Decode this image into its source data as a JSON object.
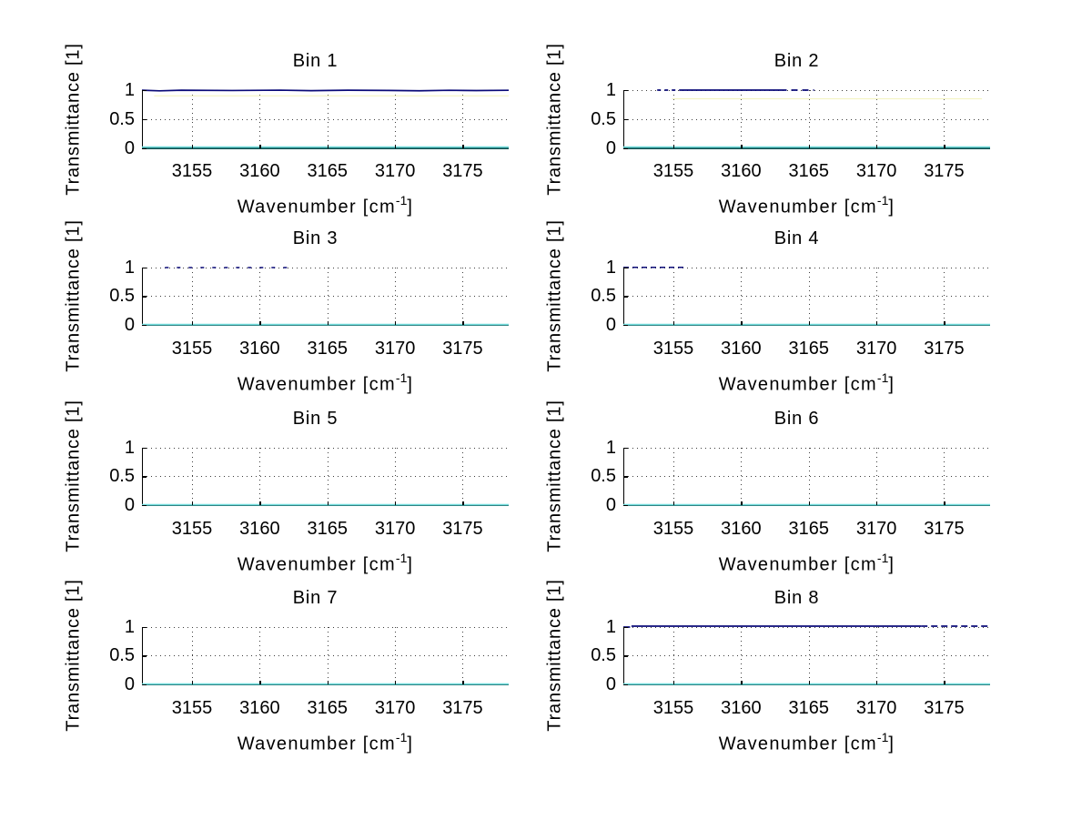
{
  "figure": {
    "background": "#ffffff"
  },
  "chart_data": [
    {
      "type": "line",
      "title": "Bin 1",
      "xlabel": "Wavenumber [cm^{-1}]",
      "ylabel": "Transmittance [1]",
      "xlim": [
        3151.3,
        3178.4
      ],
      "ylim": [
        0,
        1
      ],
      "xticks": [
        3155,
        3160,
        3165,
        3170,
        3175
      ],
      "yticks": [
        0,
        0.5,
        1
      ],
      "grid": "dotted",
      "series": [
        {
          "name": "transmittance-line",
          "color": "#0a0a78",
          "width": 1.7,
          "points": [
            [
              3151.3,
              0.998
            ],
            [
              3152.6,
              0.987
            ],
            [
              3154.2,
              0.998
            ],
            [
              3158,
              0.993
            ],
            [
              3161.5,
              0.999
            ],
            [
              3163.8,
              0.99
            ],
            [
              3166.5,
              0.998
            ],
            [
              3169.5,
              0.994
            ],
            [
              3171.8,
              0.988
            ],
            [
              3174,
              0.997
            ],
            [
              3176,
              0.992
            ],
            [
              3178.4,
              0.997
            ]
          ]
        },
        {
          "name": "reference-line-faint",
          "color": "#f4f4c2",
          "width": 1.1,
          "parts": [
            {
              "x": [
                3152.2,
                3178.4
              ],
              "y": 0.9,
              "dash": "solid"
            }
          ]
        },
        {
          "name": "baseline-line",
          "color": "#72dcdc",
          "width": 1.6,
          "parts": [
            {
              "x": [
                3151.3,
                3178.4
              ],
              "y": 0.015,
              "dash": "solid"
            }
          ]
        }
      ]
    },
    {
      "type": "line",
      "title": "Bin 2",
      "xlabel": "Wavenumber [cm^{-1}]",
      "ylabel": "Transmittance [1]",
      "xlim": [
        3151.3,
        3178.4
      ],
      "ylim": [
        0,
        1
      ],
      "xticks": [
        3155,
        3160,
        3165,
        3170,
        3175
      ],
      "yticks": [
        0,
        0.5,
        1
      ],
      "grid": "dotted",
      "series": [
        {
          "name": "transmittance-line",
          "color": "#0a0a78",
          "width": 1.7,
          "parts": [
            {
              "x": [
                3153.8,
                3155.5
              ],
              "y": 1.0,
              "dash": [
                4,
                4
              ]
            },
            {
              "x": [
                3155.5,
                3162.9
              ],
              "y": 1.0,
              "dash": "solid"
            },
            {
              "x": [
                3162.9,
                3165.4
              ],
              "y": 1.0,
              "dash": [
                7,
                5
              ]
            }
          ]
        },
        {
          "name": "reference-line-faint",
          "color": "#f4f4c2",
          "width": 1.1,
          "parts": [
            {
              "x": [
                3154.9,
                3177.8
              ],
              "y": 0.85,
              "dash": "solid"
            }
          ]
        },
        {
          "name": "baseline-line",
          "color": "#72dcdc",
          "width": 1.6,
          "parts": [
            {
              "x": [
                3151.3,
                3178.4
              ],
              "y": 0.015,
              "dash": "solid"
            }
          ]
        }
      ]
    },
    {
      "type": "line",
      "title": "Bin 3",
      "xlabel": "Wavenumber [cm^{-1}]",
      "ylabel": "Transmittance [1]",
      "xlim": [
        3151.3,
        3178.4
      ],
      "ylim": [
        0,
        1
      ],
      "xticks": [
        3155,
        3160,
        3165,
        3170,
        3175
      ],
      "yticks": [
        0,
        0.5,
        1
      ],
      "grid": "dotted",
      "series": [
        {
          "name": "transmittance-line",
          "color": "#0a0a78",
          "width": 1.6,
          "parts": [
            {
              "x": [
                3153.0,
                3162.2
              ],
              "y": 1.0,
              "dash": [
                4,
                9
              ]
            }
          ]
        },
        {
          "name": "baseline-line",
          "color": "#72dcdc",
          "width": 1.6,
          "parts": [
            {
              "x": [
                3151.3,
                3178.4
              ],
              "y": 0.015,
              "dash": "solid"
            }
          ]
        }
      ]
    },
    {
      "type": "line",
      "title": "Bin 4",
      "xlabel": "Wavenumber [cm^{-1}]",
      "ylabel": "Transmittance [1]",
      "xlim": [
        3151.3,
        3178.4
      ],
      "ylim": [
        0,
        1
      ],
      "xticks": [
        3155,
        3160,
        3165,
        3170,
        3175
      ],
      "yticks": [
        0,
        0.5,
        1
      ],
      "grid": "dotted",
      "series": [
        {
          "name": "transmittance-line",
          "color": "#0a0a78",
          "width": 1.6,
          "parts": [
            {
              "x": [
                3151.3,
                3156.0
              ],
              "y": 1.004,
              "dash": [
                6,
                4
              ]
            }
          ]
        },
        {
          "name": "baseline-line",
          "color": "#72dcdc",
          "width": 1.6,
          "parts": [
            {
              "x": [
                3151.3,
                3178.4
              ],
              "y": 0.015,
              "dash": "solid"
            }
          ]
        }
      ]
    },
    {
      "type": "line",
      "title": "Bin 5",
      "xlabel": "Wavenumber [cm^{-1}]",
      "ylabel": "Transmittance [1]",
      "xlim": [
        3151.3,
        3178.4
      ],
      "ylim": [
        0,
        1
      ],
      "xticks": [
        3155,
        3160,
        3165,
        3170,
        3175
      ],
      "yticks": [
        0,
        0.5,
        1
      ],
      "grid": "dotted",
      "series": [
        {
          "name": "baseline-line",
          "color": "#72dcdc",
          "width": 1.6,
          "parts": [
            {
              "x": [
                3151.3,
                3178.4
              ],
              "y": 0.015,
              "dash": "solid"
            }
          ]
        }
      ]
    },
    {
      "type": "line",
      "title": "Bin 6",
      "xlabel": "Wavenumber [cm^{-1}]",
      "ylabel": "Transmittance [1]",
      "xlim": [
        3151.3,
        3178.4
      ],
      "ylim": [
        0,
        1
      ],
      "xticks": [
        3155,
        3160,
        3165,
        3170,
        3175
      ],
      "yticks": [
        0,
        0.5,
        1
      ],
      "grid": "dotted",
      "series": [
        {
          "name": "baseline-line",
          "color": "#72dcdc",
          "width": 1.6,
          "parts": [
            {
              "x": [
                3151.3,
                3178.4
              ],
              "y": 0.015,
              "dash": "solid"
            }
          ]
        }
      ]
    },
    {
      "type": "line",
      "title": "Bin 7",
      "xlabel": "Wavenumber [cm^{-1}]",
      "ylabel": "Transmittance [1]",
      "xlim": [
        3151.3,
        3178.4
      ],
      "ylim": [
        0,
        1
      ],
      "xticks": [
        3155,
        3160,
        3165,
        3170,
        3175
      ],
      "yticks": [
        0,
        0.5,
        1
      ],
      "grid": "dotted",
      "series": [
        {
          "name": "baseline-line",
          "color": "#72dcdc",
          "width": 1.6,
          "parts": [
            {
              "x": [
                3151.3,
                3178.4
              ],
              "y": 0.015,
              "dash": "solid"
            }
          ]
        }
      ]
    },
    {
      "type": "line",
      "title": "Bin 8",
      "xlabel": "Wavenumber [cm^{-1}]",
      "ylabel": "Transmittance [1]",
      "xlim": [
        3151.3,
        3178.4
      ],
      "ylim": [
        0,
        1
      ],
      "xticks": [
        3155,
        3160,
        3165,
        3170,
        3175
      ],
      "yticks": [
        0,
        0.5,
        1
      ],
      "grid": "dotted",
      "series": [
        {
          "name": "transmittance-line",
          "color": "#0a0a78",
          "width": 1.7,
          "parts": [
            {
              "x": [
                3151.3,
                3151.8
              ],
              "y": 1.0,
              "dash": "solid"
            },
            {
              "x": [
                3151.9,
                3173.3
              ],
              "y": 1.016,
              "dash": "solid"
            },
            {
              "x": [
                3173.3,
                3178.4
              ],
              "y": 1.016,
              "dash": [
                7,
                4
              ]
            }
          ]
        },
        {
          "name": "baseline-line",
          "color": "#72dcdc",
          "width": 1.6,
          "parts": [
            {
              "x": [
                3151.3,
                3178.4
              ],
              "y": 0.015,
              "dash": "solid"
            }
          ]
        }
      ]
    }
  ]
}
